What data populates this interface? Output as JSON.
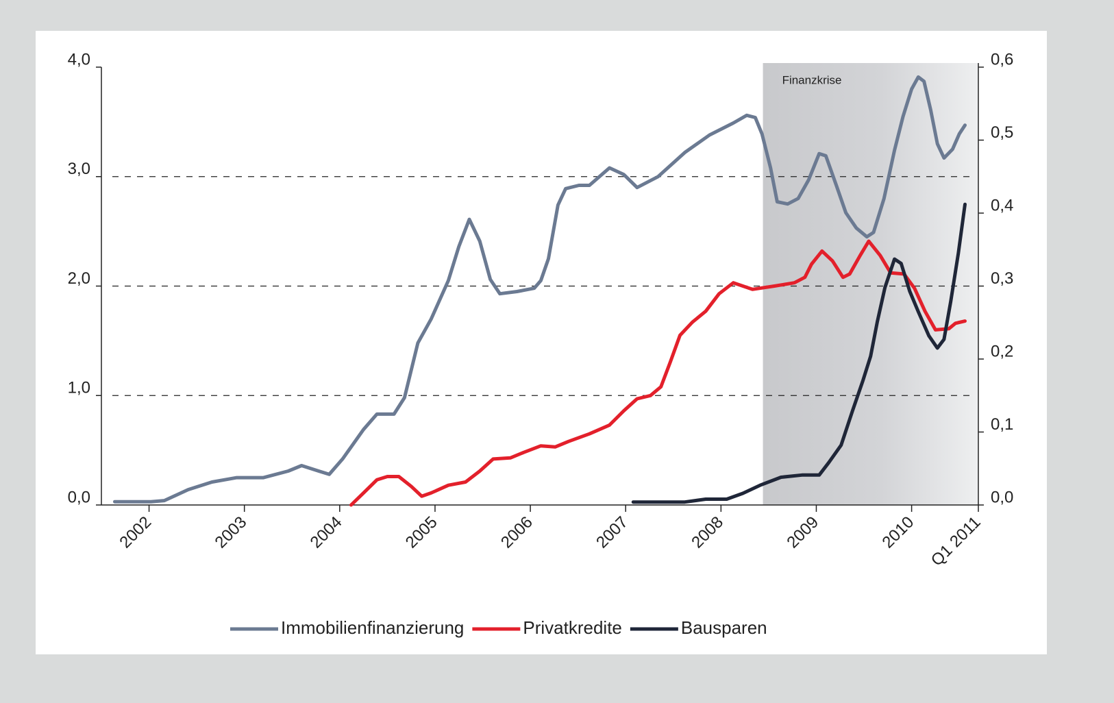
{
  "chart_data": {
    "type": "line",
    "xlim": [
      2002,
      2011.2
    ],
    "xticks": [
      {
        "value": 2002.5,
        "label": "2002"
      },
      {
        "value": 2003.5,
        "label": "2003"
      },
      {
        "value": 2004.5,
        "label": "2004"
      },
      {
        "value": 2005.5,
        "label": "2005"
      },
      {
        "value": 2006.5,
        "label": "2006"
      },
      {
        "value": 2007.5,
        "label": "2007"
      },
      {
        "value": 2008.5,
        "label": "2008"
      },
      {
        "value": 2009.5,
        "label": "2009"
      },
      {
        "value": 2010.5,
        "label": "2010"
      },
      {
        "value": 2011.2,
        "label": "Q1 2011"
      }
    ],
    "ylim": [
      0,
      4
    ],
    "yticks": [
      {
        "value": 0,
        "label": "0,0"
      },
      {
        "value": 1,
        "label": "1,0"
      },
      {
        "value": 2,
        "label": "2,0"
      },
      {
        "value": 3,
        "label": "3,0"
      },
      {
        "value": 4,
        "label": "4,0"
      }
    ],
    "y2lim": [
      0,
      0.6
    ],
    "y2ticks": [
      {
        "value": 0,
        "label": "0,0"
      },
      {
        "value": 0.1,
        "label": "0,1"
      },
      {
        "value": 0.2,
        "label": "0,2"
      },
      {
        "value": 0.3,
        "label": "0,3"
      },
      {
        "value": 0.4,
        "label": "0,4"
      },
      {
        "value": 0.5,
        "label": "0,5"
      },
      {
        "value": 0.6,
        "label": "0,6"
      }
    ],
    "grid": true,
    "annotations": [
      {
        "text": "Finanzkrise",
        "x0": 2008.94,
        "x1": 2011.2
      }
    ],
    "series": [
      {
        "name": "Immobilienfinanzierung",
        "color": "#6b7a92",
        "x": [
          2002.14,
          2002.52,
          2002.66,
          2002.91,
          2003.16,
          2003.42,
          2003.7,
          2003.96,
          2004.1,
          2004.28,
          2004.39,
          2004.53,
          2004.75,
          2004.89,
          2005.07,
          2005.18,
          2005.32,
          2005.46,
          2005.64,
          2005.75,
          2005.86,
          2005.97,
          2006.08,
          2006.18,
          2006.36,
          2006.54,
          2006.61,
          2006.69,
          2006.79,
          2006.87,
          2007.01,
          2007.12,
          2007.33,
          2007.48,
          2007.62,
          2007.84,
          2008.12,
          2008.38,
          2008.63,
          2008.77,
          2008.86,
          2008.93,
          2009.02,
          2009.09,
          2009.2,
          2009.31,
          2009.42,
          2009.53,
          2009.6,
          2009.71,
          2009.81,
          2009.92,
          2010.03,
          2010.1,
          2010.21,
          2010.32,
          2010.41,
          2010.5,
          2010.57,
          2010.63,
          2010.7,
          2010.77,
          2010.84,
          2010.93,
          2011.0,
          2011.06
        ],
        "values": [
          0.03,
          0.03,
          0.04,
          0.14,
          0.21,
          0.25,
          0.25,
          0.31,
          0.36,
          0.31,
          0.28,
          0.42,
          0.69,
          0.83,
          0.83,
          0.98,
          1.48,
          1.7,
          2.05,
          2.36,
          2.61,
          2.41,
          2.06,
          1.93,
          1.95,
          1.98,
          2.05,
          2.25,
          2.74,
          2.89,
          2.92,
          2.92,
          3.08,
          3.02,
          2.9,
          3.0,
          3.22,
          3.38,
          3.49,
          3.56,
          3.54,
          3.39,
          3.08,
          2.77,
          2.75,
          2.8,
          2.97,
          3.21,
          3.19,
          2.92,
          2.67,
          2.53,
          2.45,
          2.49,
          2.8,
          3.24,
          3.55,
          3.8,
          3.91,
          3.87,
          3.61,
          3.3,
          3.17,
          3.25,
          3.39,
          3.47
        ]
      },
      {
        "name": "Privatkredite",
        "color": "#e3202b",
        "x": [
          2004.62,
          2004.75,
          2004.89,
          2005.0,
          2005.12,
          2005.25,
          2005.36,
          2005.46,
          2005.64,
          2005.82,
          2005.97,
          2006.11,
          2006.29,
          2006.43,
          2006.61,
          2006.76,
          2006.9,
          2007.12,
          2007.33,
          2007.48,
          2007.62,
          2007.76,
          2007.87,
          2007.97,
          2008.07,
          2008.2,
          2008.34,
          2008.48,
          2008.63,
          2008.83,
          2009.06,
          2009.27,
          2009.38,
          2009.45,
          2009.56,
          2009.67,
          2009.78,
          2009.85,
          2009.96,
          2010.05,
          2010.17,
          2010.28,
          2010.42,
          2010.53,
          2010.64,
          2010.75,
          2010.89,
          2010.96,
          2011.06
        ],
        "values": [
          0.0,
          0.11,
          0.23,
          0.26,
          0.26,
          0.17,
          0.08,
          0.11,
          0.18,
          0.21,
          0.31,
          0.42,
          0.43,
          0.48,
          0.54,
          0.53,
          0.58,
          0.65,
          0.73,
          0.86,
          0.97,
          1.0,
          1.08,
          1.31,
          1.55,
          1.67,
          1.77,
          1.93,
          2.03,
          1.97,
          2.0,
          2.03,
          2.08,
          2.2,
          2.32,
          2.23,
          2.08,
          2.11,
          2.28,
          2.41,
          2.28,
          2.12,
          2.11,
          1.98,
          1.77,
          1.6,
          1.61,
          1.66,
          1.68
        ]
      },
      {
        "name": "Bausparen",
        "color": "#1f2638",
        "axis": "y2",
        "x": [
          2007.58,
          2008.12,
          2008.34,
          2008.56,
          2008.73,
          2008.91,
          2009.13,
          2009.35,
          2009.53,
          2009.63,
          2009.76,
          2009.88,
          2009.99,
          2010.07,
          2010.14,
          2010.22,
          2010.32,
          2010.39,
          2010.48,
          2010.57,
          2010.68,
          2010.77,
          2010.84,
          2010.91,
          2010.99,
          2011.06
        ],
        "values": [
          0.004,
          0.004,
          0.008,
          0.008,
          0.016,
          0.027,
          0.038,
          0.041,
          0.041,
          0.058,
          0.082,
          0.129,
          0.171,
          0.204,
          0.251,
          0.298,
          0.337,
          0.331,
          0.293,
          0.265,
          0.232,
          0.215,
          0.227,
          0.279,
          0.345,
          0.412
        ]
      }
    ]
  }
}
